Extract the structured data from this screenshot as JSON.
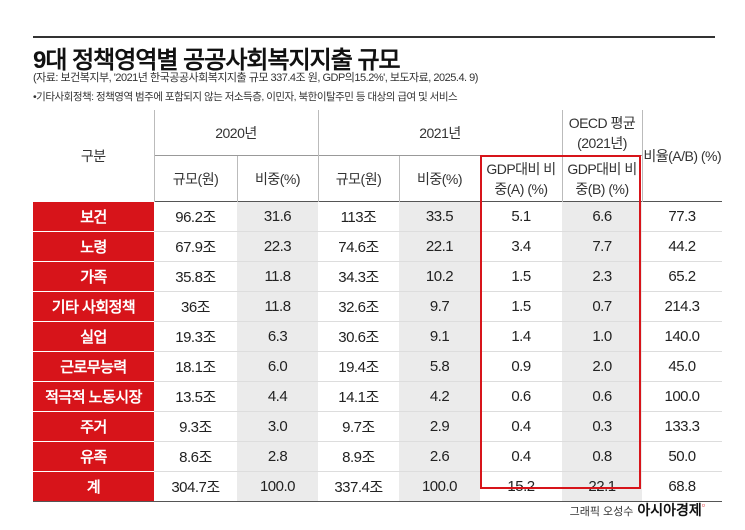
{
  "title": "9대 정책영역별 공공사회복지지출 규모",
  "source": "(자료: 보건복지부, '2021년 한국공공사회복지지출 규모 337.4조 원, GDP의15.2%', 보도자료, 2025.4. 9)",
  "note": "•기타사회정책: 정책영역 범주에 포함되지 않는 저소득층, 이민자, 북한이탈주민 등 대상의 급여 및 서비스",
  "header": {
    "category": "구분",
    "y2020": "2020년",
    "y2021": "2021년",
    "oecd": "OECD 평균 (2021년)",
    "ratio": "비율(A/B) (%)",
    "scale": "규모(원)",
    "share": "비중(%)",
    "gdpA": "GDP대비 비중(A) (%)",
    "gdpB": "GDP대비 비중(B) (%)"
  },
  "rows": [
    {
      "label": "보건",
      "s2020": "96.2조",
      "p2020": "31.6",
      "s2021": "113조",
      "p2021": "33.5",
      "a": "5.1",
      "b": "6.6",
      "r": "77.3"
    },
    {
      "label": "노령",
      "s2020": "67.9조",
      "p2020": "22.3",
      "s2021": "74.6조",
      "p2021": "22.1",
      "a": "3.4",
      "b": "7.7",
      "r": "44.2"
    },
    {
      "label": "가족",
      "s2020": "35.8조",
      "p2020": "11.8",
      "s2021": "34.3조",
      "p2021": "10.2",
      "a": "1.5",
      "b": "2.3",
      "r": "65.2"
    },
    {
      "label": "기타 사회정책",
      "s2020": "36조",
      "p2020": "11.8",
      "s2021": "32.6조",
      "p2021": "9.7",
      "a": "1.5",
      "b": "0.7",
      "r": "214.3"
    },
    {
      "label": "실업",
      "s2020": "19.3조",
      "p2020": "6.3",
      "s2021": "30.6조",
      "p2021": "9.1",
      "a": "1.4",
      "b": "1.0",
      "r": "140.0"
    },
    {
      "label": "근로무능력",
      "s2020": "18.1조",
      "p2020": "6.0",
      "s2021": "19.4조",
      "p2021": "5.8",
      "a": "0.9",
      "b": "2.0",
      "r": "45.0"
    },
    {
      "label": "적극적 노동시장",
      "s2020": "13.5조",
      "p2020": "4.4",
      "s2021": "14.1조",
      "p2021": "4.2",
      "a": "0.6",
      "b": "0.6",
      "r": "100.0"
    },
    {
      "label": "주거",
      "s2020": "9.3조",
      "p2020": "3.0",
      "s2021": "9.7조",
      "p2021": "2.9",
      "a": "0.4",
      "b": "0.3",
      "r": "133.3"
    },
    {
      "label": "유족",
      "s2020": "8.6조",
      "p2020": "2.8",
      "s2021": "8.9조",
      "p2021": "2.6",
      "a": "0.4",
      "b": "0.8",
      "r": "50.0"
    },
    {
      "label": "계",
      "s2020": "304.7조",
      "p2020": "100.0",
      "s2021": "337.4조",
      "p2021": "100.0",
      "a": "15.2",
      "b": "22.1",
      "r": "68.8"
    }
  ],
  "credit": {
    "author": "그래픽 오성수",
    "brand": "아시아경제"
  },
  "colors": {
    "accent": "#d7141a",
    "shade": "#ebebeb"
  }
}
